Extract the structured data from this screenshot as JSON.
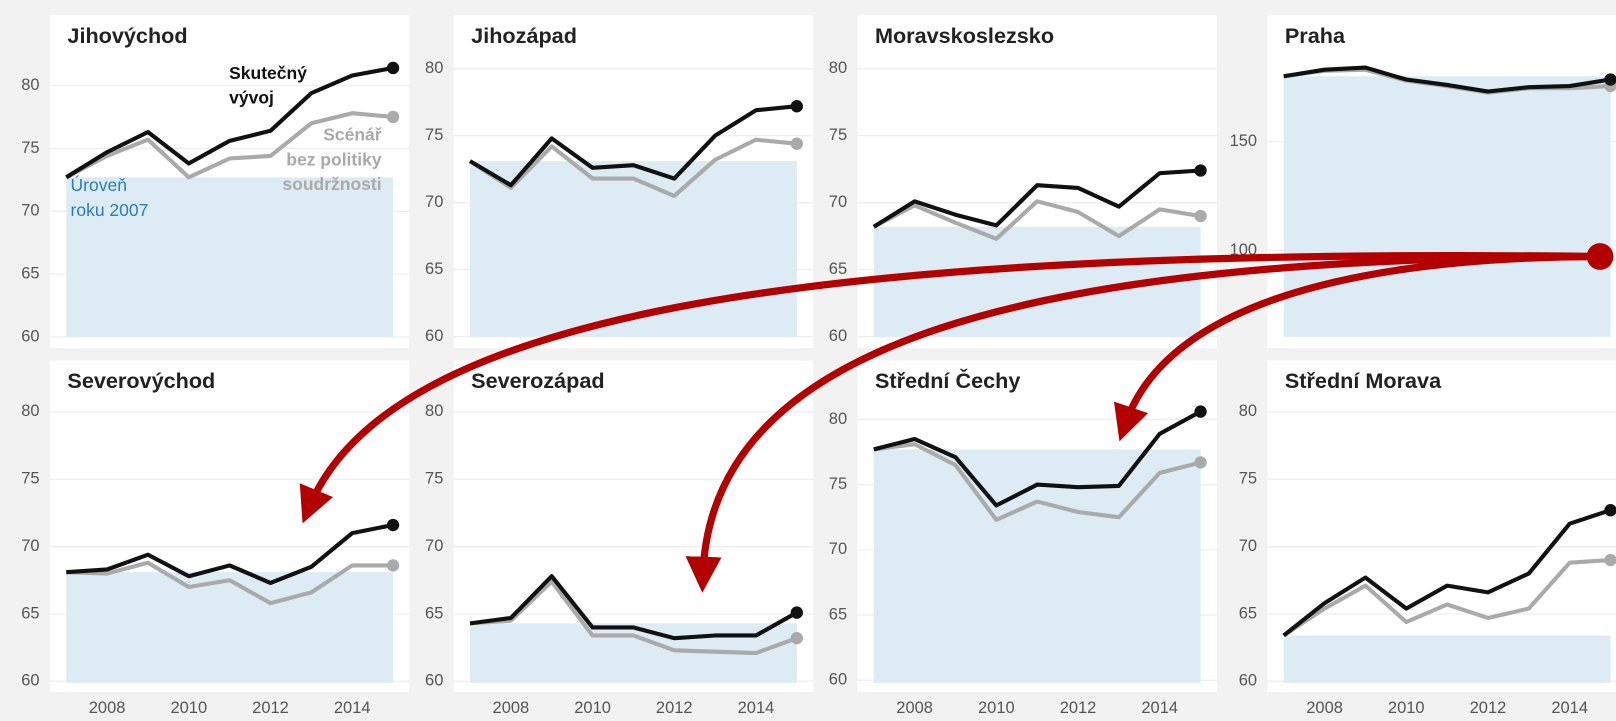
{
  "chart_data": [
    {
      "type": "line",
      "title": "Jihovýchod",
      "x": [
        2007,
        2008,
        2009,
        2010,
        2011,
        2012,
        2013,
        2014,
        2015
      ],
      "xlim": [
        2006.6,
        2015.4
      ],
      "ylim": [
        59.6,
        82.3
      ],
      "yticks": [
        60,
        65,
        70,
        75,
        80
      ],
      "grid": true,
      "baseline": 72.7,
      "baseline_color": "#dcebf4",
      "series": [
        {
          "color": "#aaaaaa",
          "values": [
            72.7,
            74.4,
            75.7,
            72.7,
            74.2,
            74.4,
            77.0,
            77.8,
            77.5
          ]
        },
        {
          "color": "#111111",
          "values": [
            72.7,
            74.7,
            76.3,
            73.8,
            75.6,
            76.4,
            79.4,
            80.8,
            81.4
          ]
        }
      ],
      "annotations": [
        {
          "lines": [
            "Skutečný",
            "vývoj"
          ],
          "color": "#111111"
        },
        {
          "lines": [
            "Scénář",
            "bez politiky",
            "soudržnosti"
          ],
          "color": "#aaaaaa"
        },
        {
          "lines": [
            "Úroveň",
            "roku 2007"
          ],
          "color": "#2b7bc4"
        }
      ]
    },
    {
      "type": "line",
      "title": "Jihozápad",
      "x": [
        2007,
        2008,
        2009,
        2010,
        2011,
        2012,
        2013,
        2014,
        2015
      ],
      "xlim": [
        2006.6,
        2015.4
      ],
      "ylim": [
        59.6,
        80.9
      ],
      "yticks": [
        60,
        65,
        70,
        75,
        80
      ],
      "grid": true,
      "baseline": 73.1,
      "baseline_color": "#dcebf4",
      "series": [
        {
          "color": "#aaaaaa",
          "values": [
            73.1,
            71.1,
            74.2,
            71.8,
            71.8,
            70.5,
            73.2,
            74.7,
            74.4
          ]
        },
        {
          "color": "#111111",
          "values": [
            73.1,
            71.3,
            74.8,
            72.6,
            72.8,
            71.8,
            75.0,
            76.9,
            77.2
          ]
        }
      ]
    },
    {
      "type": "line",
      "title": "Moravskoslezsko",
      "x": [
        2007,
        2008,
        2009,
        2010,
        2011,
        2012,
        2013,
        2014,
        2015
      ],
      "xlim": [
        2006.6,
        2015.4
      ],
      "ylim": [
        59.6,
        80.9
      ],
      "yticks": [
        60,
        65,
        70,
        75,
        80
      ],
      "grid": true,
      "baseline": 68.2,
      "baseline_color": "#dcebf4",
      "series": [
        {
          "color": "#aaaaaa",
          "values": [
            68.2,
            69.8,
            68.5,
            67.3,
            70.1,
            69.3,
            67.5,
            69.5,
            69.0
          ]
        },
        {
          "color": "#111111",
          "values": [
            68.2,
            70.1,
            69.1,
            68.3,
            71.3,
            71.1,
            69.7,
            72.2,
            72.4
          ]
        }
      ]
    },
    {
      "type": "line",
      "title": "Praha",
      "x": [
        2007,
        2008,
        2009,
        2010,
        2011,
        2012,
        2013,
        2014,
        2015
      ],
      "xlim": [
        2006.6,
        2015.4
      ],
      "ylim": [
        58,
        189
      ],
      "yticks": [
        100,
        150
      ],
      "grid": true,
      "baseline": 180,
      "baseline_color": "#dcebf4",
      "series": [
        {
          "color": "#aaaaaa",
          "values": [
            180,
            182.5,
            183,
            178,
            175.5,
            172.5,
            174.5,
            174.5,
            175.5
          ]
        },
        {
          "color": "#111111",
          "values": [
            180,
            183,
            184,
            178.5,
            176,
            173,
            175,
            175.5,
            178.5
          ]
        }
      ]
    },
    {
      "type": "line",
      "title": "Severovýchod",
      "x": [
        2007,
        2008,
        2009,
        2010,
        2011,
        2012,
        2013,
        2014,
        2015
      ],
      "xlim": [
        2006.6,
        2015.4
      ],
      "ylim": [
        59.5,
        80.6
      ],
      "yticks": [
        60,
        65,
        70,
        75,
        80
      ],
      "xticks": [
        2008,
        2010,
        2012,
        2014
      ],
      "grid": true,
      "baseline": 68.1,
      "baseline_color": "#dcebf4",
      "series": [
        {
          "color": "#aaaaaa",
          "values": [
            68.1,
            68.0,
            68.8,
            67.0,
            67.5,
            65.8,
            66.6,
            68.6,
            68.6
          ]
        },
        {
          "color": "#111111",
          "values": [
            68.1,
            68.3,
            69.4,
            67.8,
            68.6,
            67.3,
            68.5,
            71.0,
            71.6
          ]
        }
      ]
    },
    {
      "type": "line",
      "title": "Severozápad",
      "x": [
        2007,
        2008,
        2009,
        2010,
        2011,
        2012,
        2013,
        2014,
        2015
      ],
      "xlim": [
        2006.6,
        2015.4
      ],
      "ylim": [
        59.5,
        80.6
      ],
      "yticks": [
        60,
        65,
        70,
        75,
        80
      ],
      "xticks": [
        2008,
        2010,
        2012,
        2014
      ],
      "grid": true,
      "baseline": 64.3,
      "baseline_color": "#dcebf4",
      "series": [
        {
          "color": "#aaaaaa",
          "values": [
            64.3,
            64.5,
            67.4,
            63.4,
            63.4,
            62.3,
            62.2,
            62.1,
            63.2
          ]
        },
        {
          "color": "#111111",
          "values": [
            64.3,
            64.7,
            67.8,
            64.0,
            64.0,
            63.2,
            63.4,
            63.4,
            65.1
          ]
        }
      ]
    },
    {
      "type": "line",
      "title": "Střední Čechy",
      "x": [
        2007,
        2008,
        2009,
        2010,
        2011,
        2012,
        2013,
        2014,
        2015
      ],
      "xlim": [
        2006.6,
        2015.4
      ],
      "ylim": [
        59.4,
        81.2
      ],
      "yticks": [
        60,
        65,
        70,
        75,
        80
      ],
      "xticks": [
        2008,
        2010,
        2012,
        2014
      ],
      "grid": true,
      "baseline": 77.7,
      "baseline_color": "#dcebf4",
      "series": [
        {
          "color": "#aaaaaa",
          "values": [
            77.7,
            78.1,
            76.5,
            72.3,
            73.7,
            72.9,
            72.5,
            75.9,
            76.7
          ]
        },
        {
          "color": "#111111",
          "values": [
            77.7,
            78.5,
            77.1,
            73.4,
            75.0,
            74.8,
            74.9,
            78.9,
            80.6
          ]
        }
      ]
    },
    {
      "type": "line",
      "title": "Střední Morava",
      "x": [
        2007,
        2008,
        2009,
        2010,
        2011,
        2012,
        2013,
        2014,
        2015
      ],
      "xlim": [
        2006.6,
        2015.4
      ],
      "ylim": [
        59.5,
        80.6
      ],
      "yticks": [
        60,
        65,
        70,
        75,
        80
      ],
      "xticks": [
        2008,
        2010,
        2012,
        2014
      ],
      "grid": true,
      "baseline": 63.4,
      "baseline_color": "#dcebf4",
      "series": [
        {
          "color": "#aaaaaa",
          "values": [
            63.4,
            65.4,
            67.1,
            64.4,
            65.7,
            64.7,
            65.4,
            68.8,
            69.0
          ]
        },
        {
          "color": "#111111",
          "values": [
            63.4,
            65.8,
            67.7,
            65.4,
            67.1,
            66.6,
            68.0,
            71.7,
            72.7
          ]
        }
      ]
    }
  ]
}
